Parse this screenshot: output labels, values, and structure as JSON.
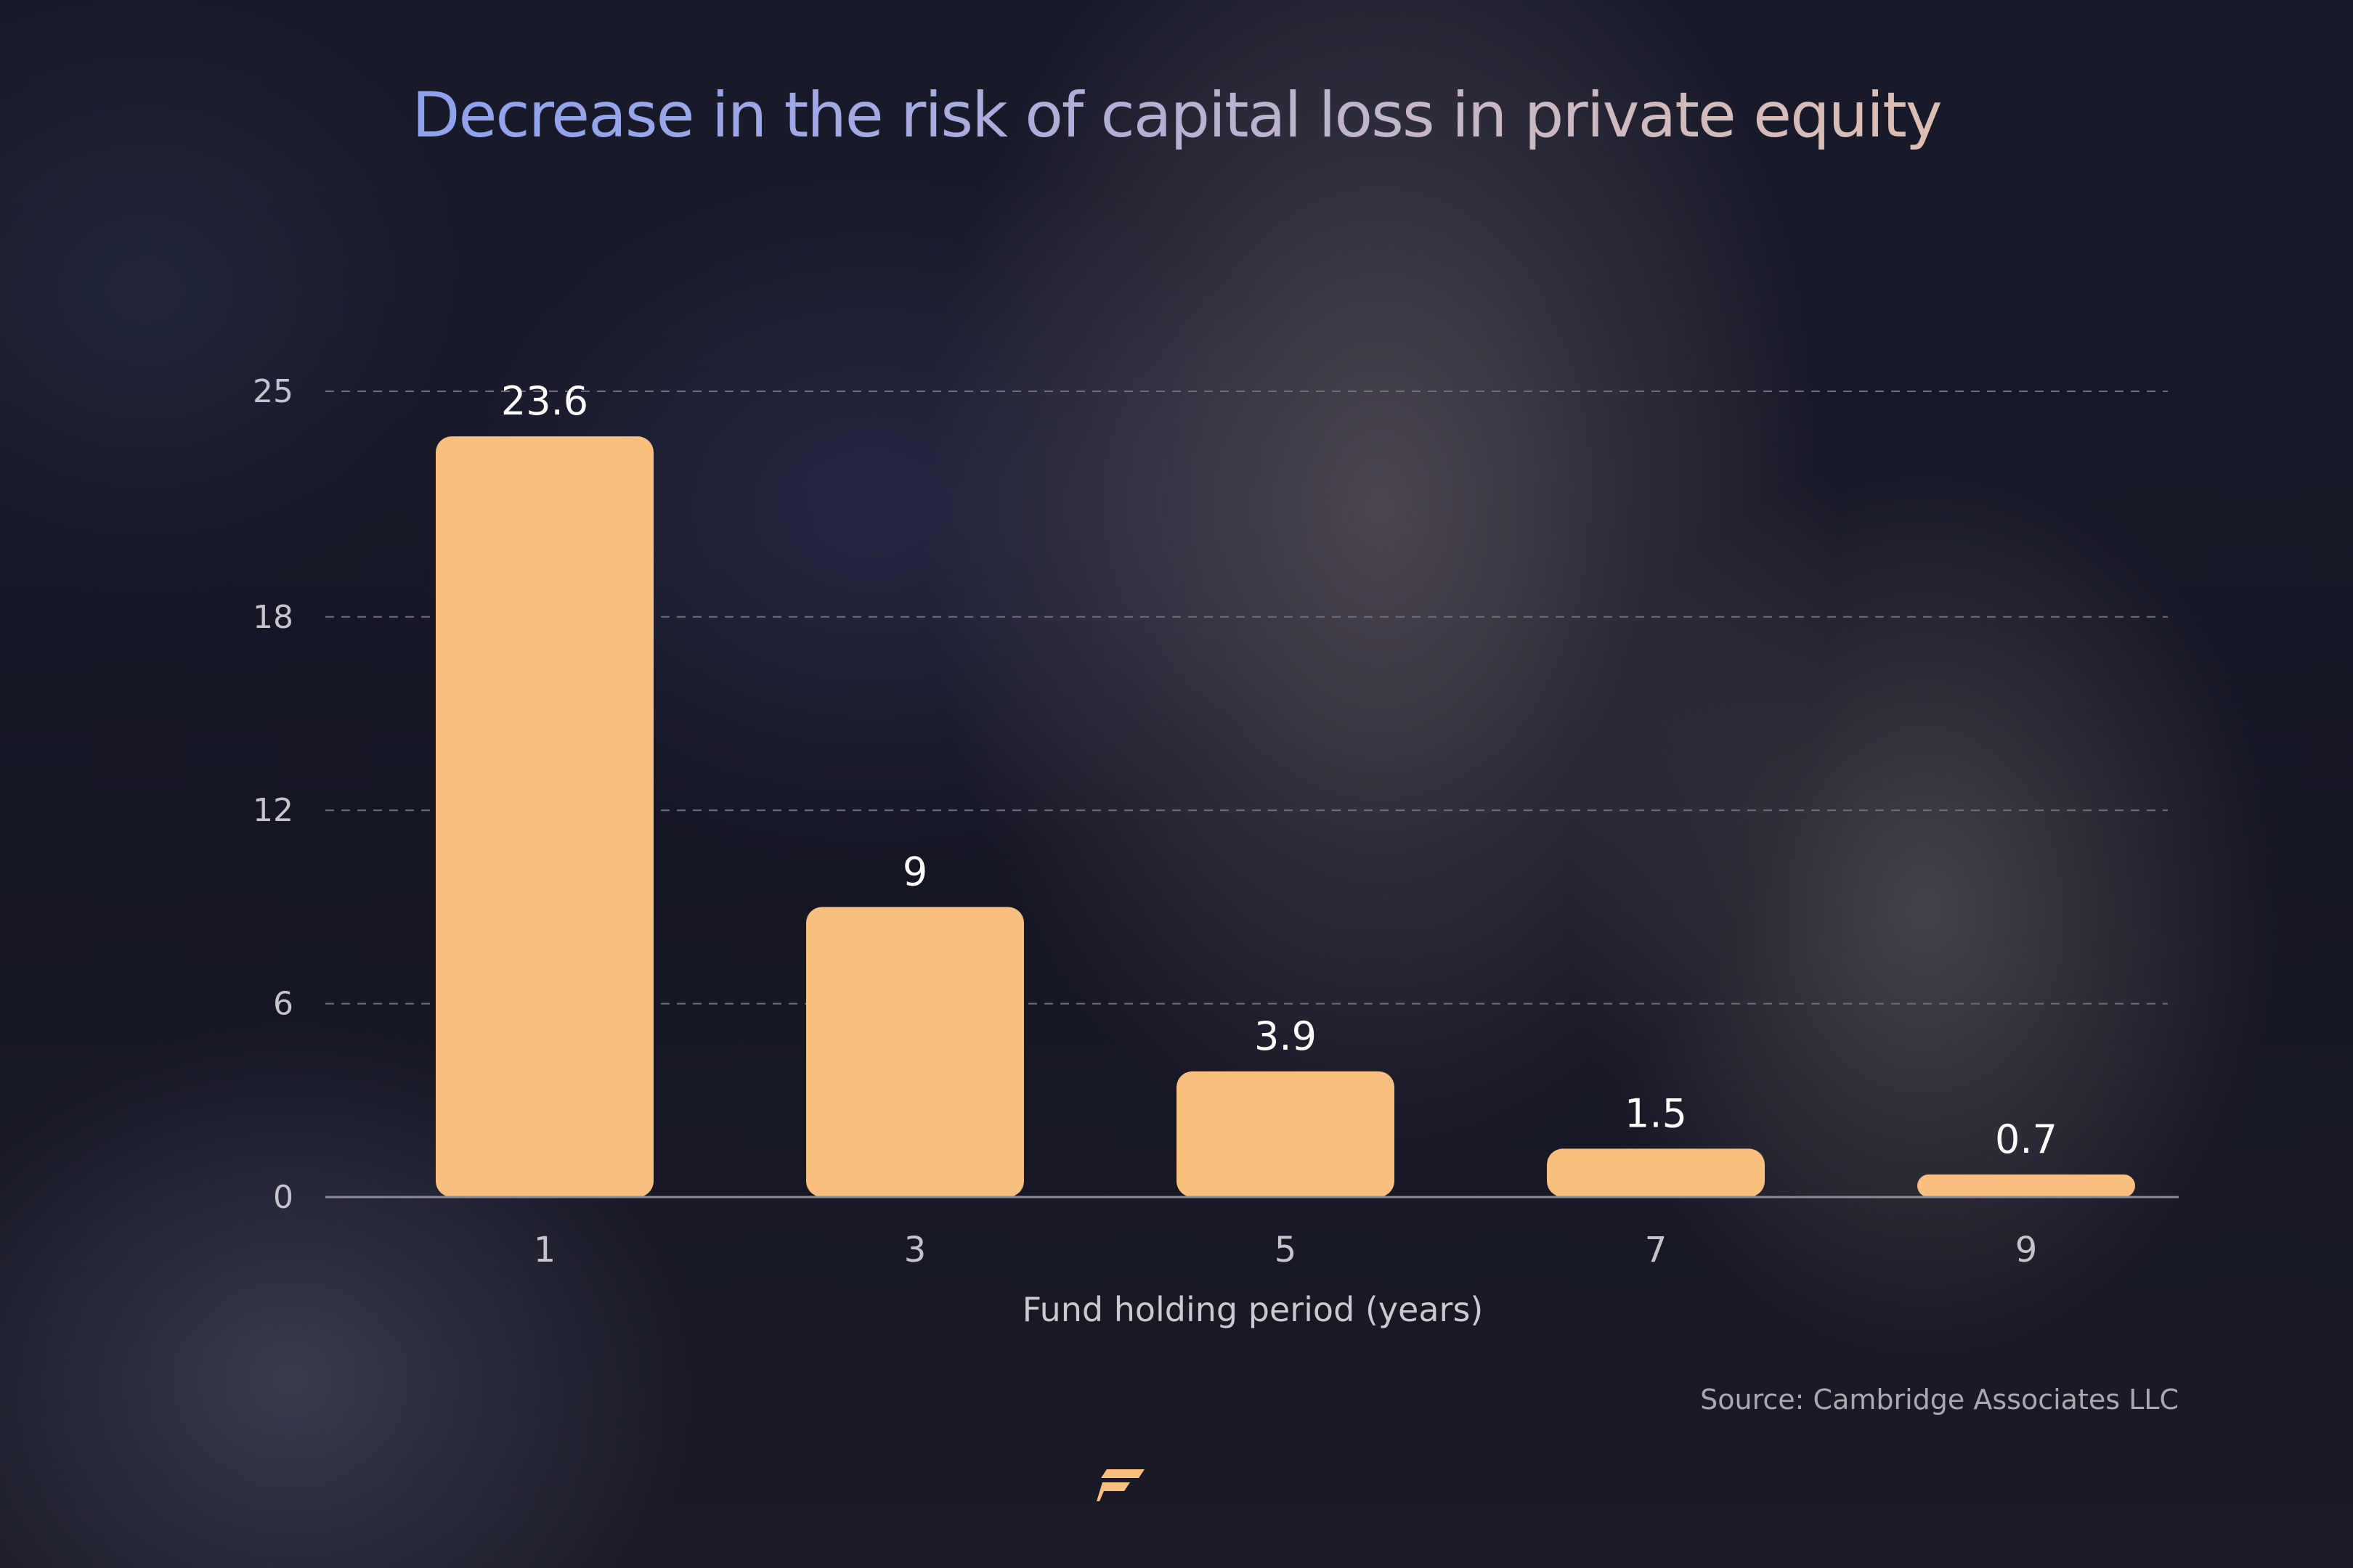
{
  "chart_data": {
    "type": "bar",
    "title": "Decrease in the risk of capital loss in private equity",
    "xlabel": "Fund holding period (years)",
    "ylabel": "",
    "categories": [
      "1",
      "3",
      "5",
      "7",
      "9"
    ],
    "values": [
      23.6,
      9,
      3.9,
      1.5,
      0.7
    ],
    "data_labels": [
      "23.6",
      "9",
      "3.9",
      "1.5",
      "0.7"
    ],
    "yticks": [
      0,
      6,
      12,
      18,
      25
    ],
    "ylim": [
      0,
      25
    ],
    "grid": true,
    "bar_color": "#f9bf7f",
    "source": "Source: Cambridge Associates LLC"
  },
  "colors": {
    "bar": "#f9bf7f",
    "logo": "#f9bf7f",
    "title_gradient": [
      "#7f9cf0",
      "#f1c4a0"
    ]
  },
  "logo": {
    "icon": "brand-logo-icon"
  }
}
